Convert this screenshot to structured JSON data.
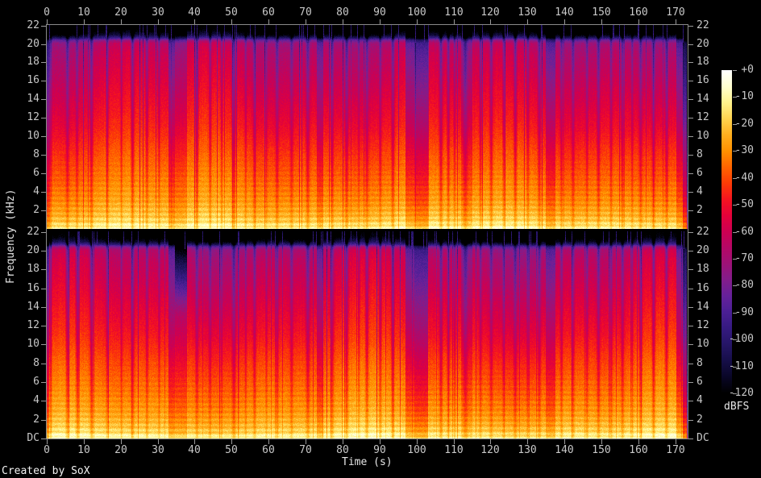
{
  "footer": {
    "created_by": "Created by SoX"
  },
  "axes": {
    "time": {
      "label": "Time (s)"
    },
    "frequency": {
      "label": "Frequency (kHz)"
    },
    "colorbar": {
      "label": "dBFS"
    }
  },
  "colors": {
    "background": "#000000",
    "axis_line": "#8a8a8a",
    "tick_text": "#c8c8c8",
    "title_text": "#e6e6e6"
  },
  "chart_data": {
    "type": "heatmap",
    "subtype": "stereo-spectrogram",
    "channels": 2,
    "title": "",
    "xlabel": "Time (s)",
    "ylabel": "Frequency (kHz)",
    "zlabel": "dBFS",
    "x_range_s": [
      0,
      173.3
    ],
    "y_range_khz": [
      0,
      22.05
    ],
    "z_range_db": [
      -120,
      0
    ],
    "time_ticks": [
      0,
      10,
      20,
      30,
      40,
      50,
      60,
      70,
      80,
      90,
      100,
      110,
      120,
      130,
      140,
      150,
      160,
      170
    ],
    "freq_ticks_khz": [
      22,
      20,
      18,
      16,
      14,
      12,
      10,
      8,
      6,
      4,
      2
    ],
    "dc_label": "DC",
    "colorbar_tick_labels": [
      "+0",
      "-10",
      "-20",
      "-30",
      "-40",
      "-50",
      "-60",
      "-70",
      "-80",
      "-90",
      "-100",
      "-110",
      "-120"
    ],
    "palette_stops_db_hex": [
      [
        0,
        "#ffffff"
      ],
      [
        -6,
        "#ffffcf"
      ],
      [
        -12,
        "#fff38c"
      ],
      [
        -18,
        "#ffd34f"
      ],
      [
        -24,
        "#ffae1e"
      ],
      [
        -30,
        "#ff9000"
      ],
      [
        -36,
        "#ff6400"
      ],
      [
        -42,
        "#fc3b06"
      ],
      [
        -48,
        "#f41420"
      ],
      [
        -54,
        "#e3013a"
      ],
      [
        -60,
        "#cc0052"
      ],
      [
        -66,
        "#b40866"
      ],
      [
        -72,
        "#9c1277"
      ],
      [
        -78,
        "#821d8b"
      ],
      [
        -84,
        "#65219a"
      ],
      [
        -90,
        "#4a1f94"
      ],
      [
        -96,
        "#351a80"
      ],
      [
        -102,
        "#251566"
      ],
      [
        -108,
        "#160e48"
      ],
      [
        -114,
        "#090627"
      ],
      [
        -120,
        "#000000"
      ]
    ],
    "loud_profile_db_by_khz": [
      [
        0,
        -3
      ],
      [
        0.25,
        -5
      ],
      [
        0.7,
        -11
      ],
      [
        1.5,
        -16
      ],
      [
        3,
        -22
      ],
      [
        5,
        -27
      ],
      [
        8,
        -33
      ],
      [
        11,
        -40
      ],
      [
        14,
        -45
      ],
      [
        17,
        -50
      ],
      [
        19,
        -53
      ],
      [
        20.1,
        -57
      ],
      [
        20.45,
        -68
      ],
      [
        20.7,
        -88
      ],
      [
        21.0,
        -103
      ],
      [
        21.5,
        -115
      ],
      [
        22.05,
        -120
      ]
    ],
    "channel_segments": {
      "ch1": [
        [
          0,
          0.6,
          0.55,
          0,
          0,
          0
        ],
        [
          0.6,
          33,
          0.92,
          0,
          0,
          0
        ],
        [
          33,
          34.6,
          0.5,
          0,
          0,
          0
        ],
        [
          34.6,
          38,
          0.68,
          0,
          0,
          0
        ],
        [
          38,
          73,
          0.94,
          0,
          0,
          0
        ],
        [
          73,
          74.8,
          0.55,
          0,
          0,
          0
        ],
        [
          74.8,
          97,
          0.94,
          0,
          0,
          0
        ],
        [
          97,
          99.5,
          0.5,
          0,
          0,
          0
        ],
        [
          99.5,
          103,
          0.36,
          0,
          0,
          0
        ],
        [
          103,
          112,
          0.88,
          0,
          0,
          0
        ],
        [
          112,
          115,
          0.66,
          0,
          0,
          0
        ],
        [
          115,
          135,
          0.9,
          0,
          0,
          0
        ],
        [
          135,
          137.5,
          0.52,
          0,
          0,
          0
        ],
        [
          137.5,
          170.3,
          0.93,
          0,
          0,
          0
        ],
        [
          170.3,
          171.9,
          0.5,
          0,
          0,
          0
        ],
        [
          171.9,
          173.0,
          0.26,
          0,
          0,
          8
        ],
        [
          173.0,
          173.4,
          0.1,
          0,
          0,
          40
        ]
      ],
      "ch2": [
        [
          0,
          0.6,
          0.55,
          0,
          0,
          0
        ],
        [
          0.6,
          33,
          0.9,
          0,
          0,
          0
        ],
        [
          33,
          34.6,
          0.48,
          0,
          0,
          0
        ],
        [
          34.6,
          38,
          0.6,
          13,
          5,
          0
        ],
        [
          38,
          73,
          0.94,
          0,
          0,
          0
        ],
        [
          73,
          74.8,
          0.55,
          0,
          0,
          0
        ],
        [
          74.8,
          97,
          0.94,
          0,
          0,
          0
        ],
        [
          97,
          99.5,
          0.5,
          0,
          0,
          0
        ],
        [
          99.5,
          103,
          0.36,
          0,
          0,
          0
        ],
        [
          103,
          112,
          0.88,
          0,
          0,
          0
        ],
        [
          112,
          115,
          0.66,
          0,
          0,
          0
        ],
        [
          115,
          135,
          0.9,
          0,
          0,
          0
        ],
        [
          135,
          137.5,
          0.52,
          0,
          0,
          0
        ],
        [
          137.5,
          170.3,
          0.93,
          0,
          0,
          0
        ],
        [
          170.3,
          171.9,
          0.5,
          0,
          0,
          0
        ],
        [
          171.9,
          173.0,
          0.26,
          0,
          0,
          8
        ],
        [
          173.0,
          173.4,
          0.1,
          0,
          0,
          40
        ]
      ]
    },
    "dips_t_w_depth": [
      [
        0.3,
        0.25,
        0.5
      ],
      [
        1.1,
        0.2,
        0.45
      ],
      [
        5.6,
        0.3,
        0.5
      ],
      [
        8.2,
        0.25,
        0.4
      ],
      [
        12.1,
        0.3,
        0.5
      ],
      [
        16.4,
        0.25,
        0.4
      ],
      [
        20.2,
        0.2,
        0.35
      ],
      [
        23.2,
        0.3,
        0.5
      ],
      [
        27.1,
        0.25,
        0.4
      ],
      [
        30.4,
        0.2,
        0.35
      ],
      [
        40.6,
        0.3,
        0.45
      ],
      [
        44.2,
        0.25,
        0.4
      ],
      [
        47.3,
        0.2,
        0.35
      ],
      [
        50.6,
        0.35,
        0.55
      ],
      [
        53.8,
        0.2,
        0.35
      ],
      [
        56.2,
        0.3,
        0.45
      ],
      [
        59.4,
        0.2,
        0.3
      ],
      [
        62.3,
        0.3,
        0.45
      ],
      [
        66.2,
        0.3,
        0.4
      ],
      [
        70.6,
        0.35,
        0.5
      ],
      [
        77.2,
        0.3,
        0.45
      ],
      [
        81.1,
        0.3,
        0.5
      ],
      [
        84.4,
        0.2,
        0.3
      ],
      [
        86.6,
        0.3,
        0.45
      ],
      [
        90.2,
        0.25,
        0.4
      ],
      [
        93.6,
        0.3,
        0.5
      ],
      [
        106.6,
        0.3,
        0.5
      ],
      [
        108.6,
        0.25,
        0.45
      ],
      [
        110.3,
        0.2,
        0.35
      ],
      [
        113.2,
        0.4,
        0.5
      ],
      [
        117.3,
        0.25,
        0.4
      ],
      [
        120.2,
        0.3,
        0.45
      ],
      [
        123.6,
        0.25,
        0.4
      ],
      [
        126.7,
        0.3,
        0.5
      ],
      [
        130.1,
        0.25,
        0.4
      ],
      [
        133.2,
        0.3,
        0.45
      ],
      [
        139.2,
        0.25,
        0.4
      ],
      [
        142.3,
        0.3,
        0.45
      ],
      [
        146.1,
        0.25,
        0.4
      ],
      [
        149.2,
        0.3,
        0.5
      ],
      [
        152.6,
        0.25,
        0.4
      ],
      [
        155.7,
        0.3,
        0.45
      ],
      [
        158.3,
        0.2,
        0.35
      ],
      [
        160.6,
        0.3,
        0.45
      ],
      [
        164.1,
        0.3,
        0.5
      ],
      [
        167.6,
        0.3,
        0.45
      ]
    ],
    "description": "Stereo music spectrogram ~173 s, lossy-style cutoff near 20.5 kHz, quiet breaks near 33-38 s, 97-103 s, 135-137.5 s, fade-out after 171 s"
  }
}
